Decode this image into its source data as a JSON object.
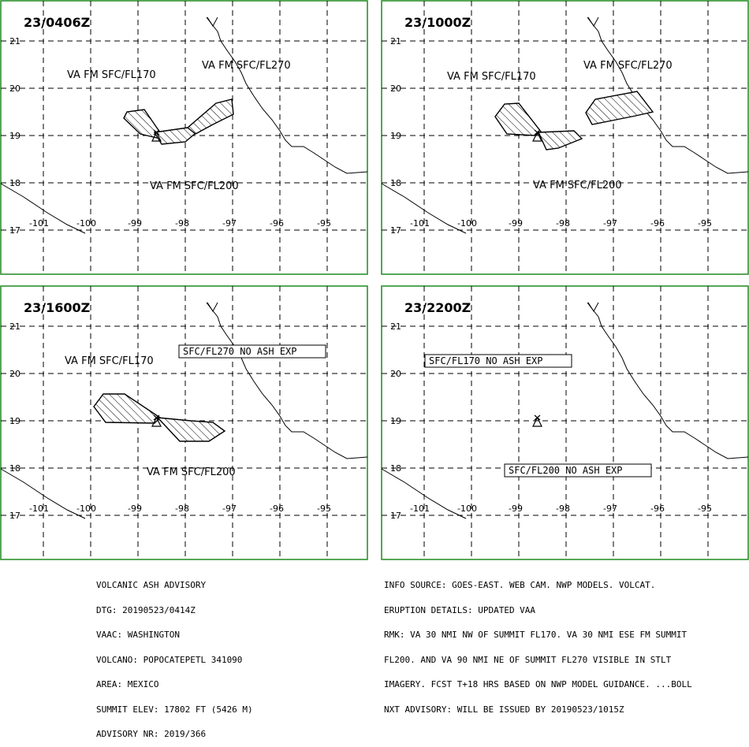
{
  "panels": [
    {
      "time": "23/0406Z",
      "labels": [
        {
          "text": "VA FM SFC/FL170",
          "boxed": false
        },
        {
          "text": "VA FM SFC/FL270",
          "boxed": false
        },
        {
          "text": "VA FM SFC/FL200",
          "boxed": false
        }
      ]
    },
    {
      "time": "23/1000Z",
      "labels": [
        {
          "text": "VA FM SFC/FL170",
          "boxed": false
        },
        {
          "text": "VA FM SFC/FL270",
          "boxed": false
        },
        {
          "text": "VA FM SFC/FL200",
          "boxed": false
        }
      ]
    },
    {
      "time": "23/1600Z",
      "labels": [
        {
          "text": "SFC/FL270 NO ASH EXP",
          "boxed": true
        },
        {
          "text": "VA FM SFC/FL170",
          "boxed": false
        },
        {
          "text": "VA FM SFC/FL200",
          "boxed": false
        }
      ]
    },
    {
      "time": "23/2200Z",
      "labels": [
        {
          "text": "SFC/FL170 NO ASH EXP",
          "boxed": true
        },
        {
          "text": "SFC/FL200 NO ASH EXP",
          "boxed": true
        }
      ]
    }
  ],
  "axes": {
    "lon_labels": [
      "-101",
      "-100",
      "-99",
      "-98",
      "-97",
      "-96",
      "-95"
    ],
    "lat_labels": [
      "21",
      "20",
      "19",
      "18",
      "17"
    ]
  },
  "advisory_left": [
    "VOLCANIC ASH ADVISORY",
    "DTG: 20190523/0414Z",
    "VAAC: WASHINGTON",
    "VOLCANO: POPOCATEPETL 341090",
    "AREA: MEXICO",
    "SUMMIT ELEV: 17802 FT (5426 M)",
    "ADVISORY NR: 2019/366"
  ],
  "advisory_right": [
    "INFO SOURCE: GOES-EAST. WEB CAM. NWP MODELS. VOLCAT.",
    "ERUPTION DETAILS: UPDATED VAA",
    "RMK: VA 30 NMI NW OF SUMMIT FL170. VA 30 NMI ESE FM SUMMIT",
    "FL200. AND VA 90 NMI NE OF SUMMIT FL270 VISIBLE IN STLT",
    "IMAGERY. FCST T+18 HRS BASED ON NWP MODEL GUIDANCE. ...BOLL",
    "NXT ADVISORY: WILL BE ISSUED BY 20190523/1015Z"
  ],
  "colors": {
    "frame": "#1f8a1f",
    "ink": "#000000"
  }
}
